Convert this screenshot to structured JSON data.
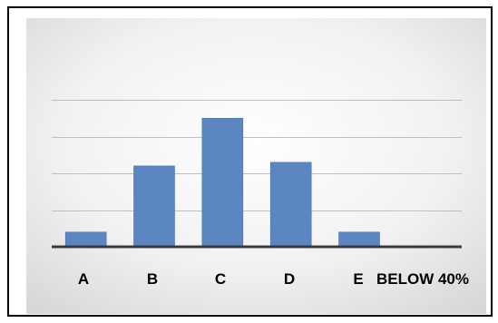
{
  "chart_data": {
    "type": "bar",
    "title": "",
    "xlabel": "",
    "ylabel": "",
    "categories": [
      "A",
      "B",
      "C",
      "D",
      "E",
      "BELOW 40%"
    ],
    "values": [
      4,
      22,
      35,
      23,
      4,
      0
    ],
    "ylim": [
      0,
      40
    ],
    "grid": true,
    "legend": "none",
    "colors": {
      "bar": "#5b86c2",
      "bar_edge": "#4a74b0",
      "grid": "#bfbfbf",
      "axis": "#3a3a3a",
      "frame": "#000000",
      "background_inner": "#ffffff",
      "background_outer": "#d4d4d4"
    }
  }
}
